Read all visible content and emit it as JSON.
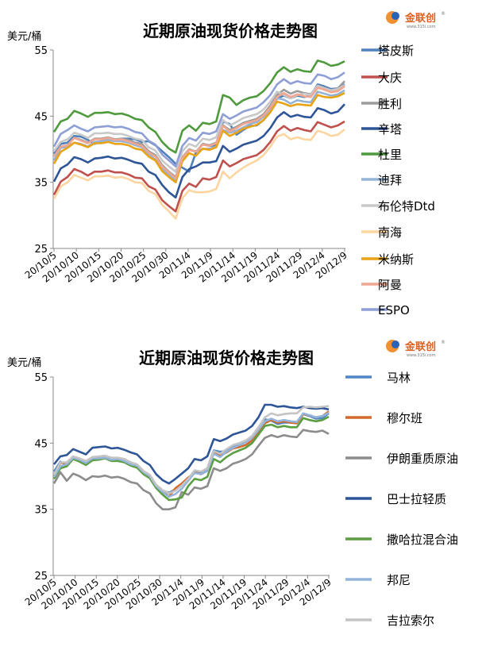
{
  "logo": {
    "text": "金联创",
    "sub": "www.315i.com",
    "reg": "®"
  },
  "chart_data": [
    {
      "type": "line",
      "title": "近期原油现货价格走势图",
      "ylabel": "美元/桶",
      "ylim": [
        25,
        55
      ],
      "yticks": [
        25,
        35,
        45,
        55
      ],
      "xtick_labels": [
        "20/10/5",
        "20/10/10",
        "20/10/15",
        "20/10/20",
        "20/10/25",
        "20/10/30",
        "20/11/4",
        "20/11/9",
        "20/11/14",
        "20/11/19",
        "20/11/24",
        "20/11/29",
        "20/12/4",
        "20/12/9"
      ],
      "grid": false,
      "legend": "right",
      "series": [
        {
          "name": "塔皮斯",
          "color": "#4f81bd",
          "values": [
            39.3,
            40.8,
            41.0,
            42.0,
            41.9,
            41.4,
            40.8,
            41.2,
            41.5,
            41.4,
            41.6,
            41.6,
            41.5,
            41.1,
            41.2,
            40.6,
            39.7,
            38.8,
            37.8,
            37.2,
            36.6,
            39.5,
            40.8,
            40.5,
            40.6,
            44.2,
            43.8,
            42.2,
            42.9,
            43.5,
            43.6,
            44.4,
            45.6,
            47.7,
            48.1,
            47.7,
            48.1,
            47.9,
            48.1,
            49.8,
            49.5,
            49.1,
            49.2,
            49.8
          ]
        },
        {
          "name": "大庆",
          "color": "#c0504d",
          "values": [
            33.1,
            35.1,
            35.8,
            37.0,
            36.6,
            36.0,
            36.6,
            36.6,
            36.8,
            36.5,
            36.5,
            36.2,
            35.7,
            35.6,
            34.4,
            33.9,
            32.3,
            31.4,
            30.6,
            33.7,
            34.8,
            34.3,
            35.6,
            35.4,
            35.8,
            38.3,
            37.4,
            37.9,
            38.5,
            38.8,
            39.1,
            39.9,
            41.1,
            42.7,
            43.5,
            42.8,
            43.2,
            42.9,
            42.7,
            44.1,
            43.7,
            43.3,
            43.6,
            44.2
          ]
        },
        {
          "name": "胜利",
          "color": "#9b9b9b",
          "values": [
            38.9,
            40.3,
            40.6,
            41.7,
            41.4,
            41.0,
            41.6,
            41.6,
            41.8,
            41.5,
            41.6,
            41.4,
            41.0,
            40.8,
            39.7,
            39.1,
            37.6,
            36.6,
            35.8,
            38.8,
            40.0,
            39.6,
            40.8,
            40.6,
            41.0,
            43.6,
            42.9,
            43.4,
            44.0,
            44.3,
            44.6,
            45.3,
            46.6,
            48.2,
            49.0,
            48.4,
            48.8,
            48.5,
            48.3,
            49.6,
            49.3,
            48.9,
            49.2,
            50.3
          ]
        },
        {
          "name": "辛塔",
          "color": "#2e5597",
          "values": [
            35.1,
            37.1,
            37.7,
            38.8,
            38.5,
            38.0,
            38.6,
            38.7,
            38.9,
            38.6,
            38.7,
            38.4,
            38.0,
            37.8,
            36.6,
            36.1,
            34.6,
            33.5,
            32.7,
            35.8,
            37.0,
            37.4,
            38.0,
            38.0,
            38.2,
            40.5,
            39.6,
            40.1,
            40.7,
            41.0,
            41.3,
            42.0,
            43.2,
            44.8,
            45.6,
            44.9,
            45.2,
            44.9,
            44.8,
            46.2,
            45.9,
            45.4,
            45.7,
            46.8
          ]
        },
        {
          "name": "杜里",
          "color": "#4e9a3d",
          "values": [
            42.6,
            44.2,
            44.6,
            45.8,
            45.4,
            44.9,
            45.5,
            45.5,
            45.6,
            45.3,
            45.4,
            45.1,
            44.6,
            44.4,
            43.3,
            42.6,
            41.1,
            40.1,
            39.5,
            42.8,
            43.6,
            42.8,
            44.0,
            43.8,
            44.2,
            48.2,
            47.8,
            46.7,
            47.4,
            47.8,
            48.0,
            48.8,
            50.0,
            51.6,
            52.4,
            51.7,
            52.1,
            51.8,
            51.7,
            53.4,
            53.1,
            52.6,
            52.8,
            53.3
          ]
        },
        {
          "name": "迪拜",
          "color": "#95b3d7",
          "values": [
            38.3,
            40.2,
            40.4,
            41.0,
            40.8,
            40.4,
            41.1,
            41.2,
            41.4,
            41.2,
            41.2,
            41.0,
            40.6,
            40.3,
            39.3,
            38.4,
            37.0,
            36.2,
            35.2,
            38.2,
            39.9,
            39.7,
            40.0,
            40.1,
            40.4,
            42.9,
            42.5,
            42.8,
            43.3,
            43.8,
            44.1,
            44.9,
            46.1,
            47.7,
            47.5,
            46.9,
            47.4,
            47.2,
            47.1,
            48.7,
            48.4,
            48.1,
            48.3,
            48.9
          ]
        },
        {
          "name": "布伦特Dtd",
          "color": "#c8c8c8",
          "values": [
            39.7,
            41.1,
            41.5,
            42.5,
            42.2,
            41.7,
            42.4,
            42.4,
            42.5,
            42.3,
            42.3,
            42.0,
            41.6,
            41.4,
            40.3,
            39.8,
            38.3,
            37.4,
            36.6,
            39.7,
            40.8,
            40.4,
            41.6,
            41.4,
            41.8,
            44.4,
            43.6,
            44.1,
            44.7,
            45.0,
            45.3,
            46.0,
            47.2,
            48.7,
            48.2,
            47.7,
            48.2,
            48.4,
            48.2,
            49.6,
            49.2,
            48.9,
            49.1,
            49.7
          ]
        },
        {
          "name": "南海",
          "color": "#fcd5a0",
          "values": [
            32.5,
            34.4,
            35.0,
            36.1,
            35.7,
            35.3,
            35.9,
            35.9,
            36.0,
            35.7,
            35.8,
            35.5,
            35.0,
            34.9,
            33.7,
            33.2,
            31.6,
            30.6,
            29.5,
            32.6,
            33.8,
            33.5,
            33.5,
            33.6,
            34.0,
            36.6,
            35.6,
            36.5,
            37.2,
            37.8,
            38.3,
            39.1,
            40.4,
            41.9,
            42.3,
            41.5,
            41.8,
            41.5,
            41.4,
            42.8,
            42.5,
            42.0,
            42.2,
            43.0
          ]
        },
        {
          "name": "米纳斯",
          "color": "#e8a416",
          "values": [
            37.8,
            39.6,
            40.2,
            41.0,
            40.7,
            40.3,
            40.9,
            40.9,
            41.1,
            40.8,
            40.8,
            40.6,
            40.1,
            39.9,
            38.9,
            38.3,
            36.7,
            35.8,
            35.0,
            38.2,
            39.4,
            39.0,
            40.1,
            39.9,
            40.3,
            42.8,
            42.0,
            42.5,
            43.1,
            43.4,
            43.7,
            44.4,
            45.6,
            47.2,
            46.9,
            46.5,
            46.8,
            46.7,
            46.6,
            48.2,
            47.9,
            47.8,
            48.0,
            48.5
          ]
        },
        {
          "name": "阿曼",
          "color": "#f0a690",
          "values": [
            38.9,
            40.4,
            40.6,
            41.7,
            41.3,
            40.9,
            41.5,
            41.5,
            41.7,
            41.4,
            41.5,
            41.2,
            40.8,
            40.5,
            39.5,
            38.9,
            37.4,
            36.5,
            35.6,
            38.7,
            39.9,
            39.6,
            40.7,
            40.5,
            40.9,
            43.5,
            42.7,
            43.2,
            43.8,
            44.1,
            44.4,
            45.1,
            46.3,
            47.9,
            48.5,
            47.9,
            48.3,
            48.0,
            47.9,
            49.3,
            49.0,
            48.6,
            48.8,
            49.5
          ]
        },
        {
          "name": "ESPO",
          "color": "#8e9fd6",
          "values": [
            40.4,
            42.3,
            42.9,
            43.6,
            43.1,
            42.7,
            43.3,
            43.4,
            43.5,
            43.3,
            43.4,
            43.1,
            42.6,
            42.4,
            41.3,
            40.7,
            39.2,
            38.3,
            37.4,
            40.5,
            41.7,
            41.3,
            42.5,
            42.3,
            42.7,
            45.3,
            44.6,
            45.1,
            45.7,
            46.0,
            46.3,
            47.1,
            48.2,
            49.8,
            50.6,
            49.9,
            50.3,
            50.0,
            49.9,
            51.3,
            51.1,
            50.6,
            50.9,
            51.6
          ]
        }
      ]
    },
    {
      "type": "line",
      "title": "近期原油现货价格走势图",
      "ylabel": "美元/桶",
      "ylim": [
        25,
        55
      ],
      "yticks": [
        25,
        35,
        45,
        55
      ],
      "xtick_labels": [
        "20/10/5",
        "20/10/10",
        "20/10/15",
        "20/10/20",
        "20/10/25",
        "20/10/30",
        "20/11/4",
        "20/11/9",
        "20/11/14",
        "20/11/19",
        "20/11/24",
        "20/11/29",
        "20/12/4",
        "20/12/9"
      ],
      "grid": false,
      "legend": "right",
      "series": [
        {
          "name": "马林",
          "color": "#4f86c6",
          "values": [
            40.7,
            42.2,
            41.7,
            42.6,
            42.3,
            41.7,
            42.4,
            42.8,
            42.9,
            42.6,
            42.6,
            42.3,
            42.0,
            41.5,
            40.6,
            39.9,
            38.6,
            37.8,
            37.5,
            38.0,
            38.7,
            39.6,
            40.7,
            40.6,
            41.2,
            43.9,
            43.7,
            43.8,
            44.5,
            44.9,
            45.2,
            46.0,
            47.3,
            48.6,
            48.4,
            47.9,
            48.1,
            48.1,
            48.0,
            49.4,
            49.1,
            48.7,
            48.8,
            49.5
          ]
        },
        {
          "name": "穆尔班",
          "color": "#d46a2a",
          "values": [
            40.1,
            42.0,
            42.0,
            42.8,
            42.5,
            42.1,
            42.7,
            42.7,
            42.8,
            42.6,
            42.6,
            42.4,
            41.9,
            41.7,
            40.7,
            40.1,
            38.6,
            37.8,
            36.9,
            38.2,
            38.9,
            39.8,
            40.6,
            40.3,
            40.8,
            43.6,
            43.1,
            43.6,
            44.2,
            44.4,
            44.7,
            45.4,
            46.6,
            48.0,
            48.5,
            48.1,
            48.3,
            48.1,
            48.0,
            49.4,
            49.2,
            48.9,
            49.1,
            49.8
          ]
        },
        {
          "name": "伊朗重质原油",
          "color": "#8c8c8c",
          "values": [
            38.9,
            40.6,
            39.3,
            40.4,
            40.0,
            39.4,
            40.0,
            39.9,
            40.1,
            39.8,
            39.9,
            39.6,
            39.1,
            38.9,
            37.9,
            37.4,
            35.9,
            35.0,
            35.0,
            35.3,
            37.6,
            37.2,
            38.3,
            38.1,
            38.5,
            41.2,
            40.8,
            41.2,
            41.9,
            42.2,
            42.6,
            43.3,
            44.6,
            45.8,
            46.2,
            45.9,
            46.2,
            46.0,
            45.9,
            47.0,
            46.8,
            46.7,
            46.9,
            46.4
          ]
        },
        {
          "name": "巴士拉轻质",
          "color": "#2e5597",
          "values": [
            41.8,
            43.0,
            43.2,
            44.1,
            43.7,
            43.3,
            44.3,
            44.4,
            44.5,
            44.2,
            44.3,
            44.0,
            43.6,
            43.3,
            42.3,
            41.7,
            40.3,
            39.4,
            38.9,
            39.6,
            40.4,
            41.2,
            42.6,
            42.4,
            43.0,
            45.6,
            45.3,
            45.7,
            46.3,
            46.6,
            46.9,
            47.6,
            48.9,
            50.8,
            50.8,
            50.5,
            50.6,
            50.4,
            50.3,
            50.5,
            50.3,
            50.2,
            50.3,
            50.1
          ]
        },
        {
          "name": "撒哈拉混合油",
          "color": "#5c9e42",
          "values": [
            39.6,
            41.2,
            41.5,
            42.6,
            42.2,
            41.7,
            42.4,
            42.5,
            42.7,
            42.3,
            42.3,
            42.1,
            41.6,
            41.3,
            40.3,
            39.7,
            38.2,
            37.2,
            36.4,
            36.5,
            36.8,
            38.5,
            39.6,
            39.4,
            39.9,
            42.6,
            42.1,
            42.9,
            43.5,
            43.9,
            44.3,
            45.0,
            46.3,
            47.6,
            47.8,
            47.4,
            47.6,
            47.4,
            47.4,
            48.8,
            48.5,
            48.3,
            48.5,
            49.0
          ]
        },
        {
          "name": "邦尼",
          "color": "#93b4dc",
          "values": [
            39.9,
            41.5,
            41.8,
            42.8,
            42.5,
            42.0,
            42.7,
            42.7,
            42.8,
            42.5,
            42.6,
            42.3,
            41.8,
            41.6,
            40.6,
            40.0,
            38.5,
            37.6,
            36.9,
            37.3,
            38.1,
            39.3,
            40.5,
            40.3,
            40.8,
            43.4,
            42.9,
            43.7,
            44.3,
            44.7,
            45.1,
            45.8,
            47.0,
            48.3,
            48.7,
            48.3,
            48.5,
            48.3,
            48.2,
            49.5,
            49.2,
            48.9,
            49.1,
            49.6
          ]
        },
        {
          "name": "吉拉索尔",
          "color": "#c4c4c4",
          "values": [
            40.2,
            42.1,
            42.1,
            43.0,
            42.7,
            42.3,
            42.9,
            43.0,
            43.1,
            42.8,
            42.8,
            42.6,
            42.1,
            41.8,
            40.8,
            40.2,
            38.7,
            37.9,
            37.4,
            37.8,
            38.6,
            39.6,
            40.9,
            40.7,
            41.2,
            43.8,
            43.4,
            44.1,
            44.7,
            45.0,
            45.4,
            46.1,
            47.4,
            48.9,
            49.5,
            49.2,
            49.4,
            49.5,
            49.5,
            50.4,
            50.5,
            50.4,
            50.5,
            50.6
          ]
        }
      ]
    }
  ]
}
